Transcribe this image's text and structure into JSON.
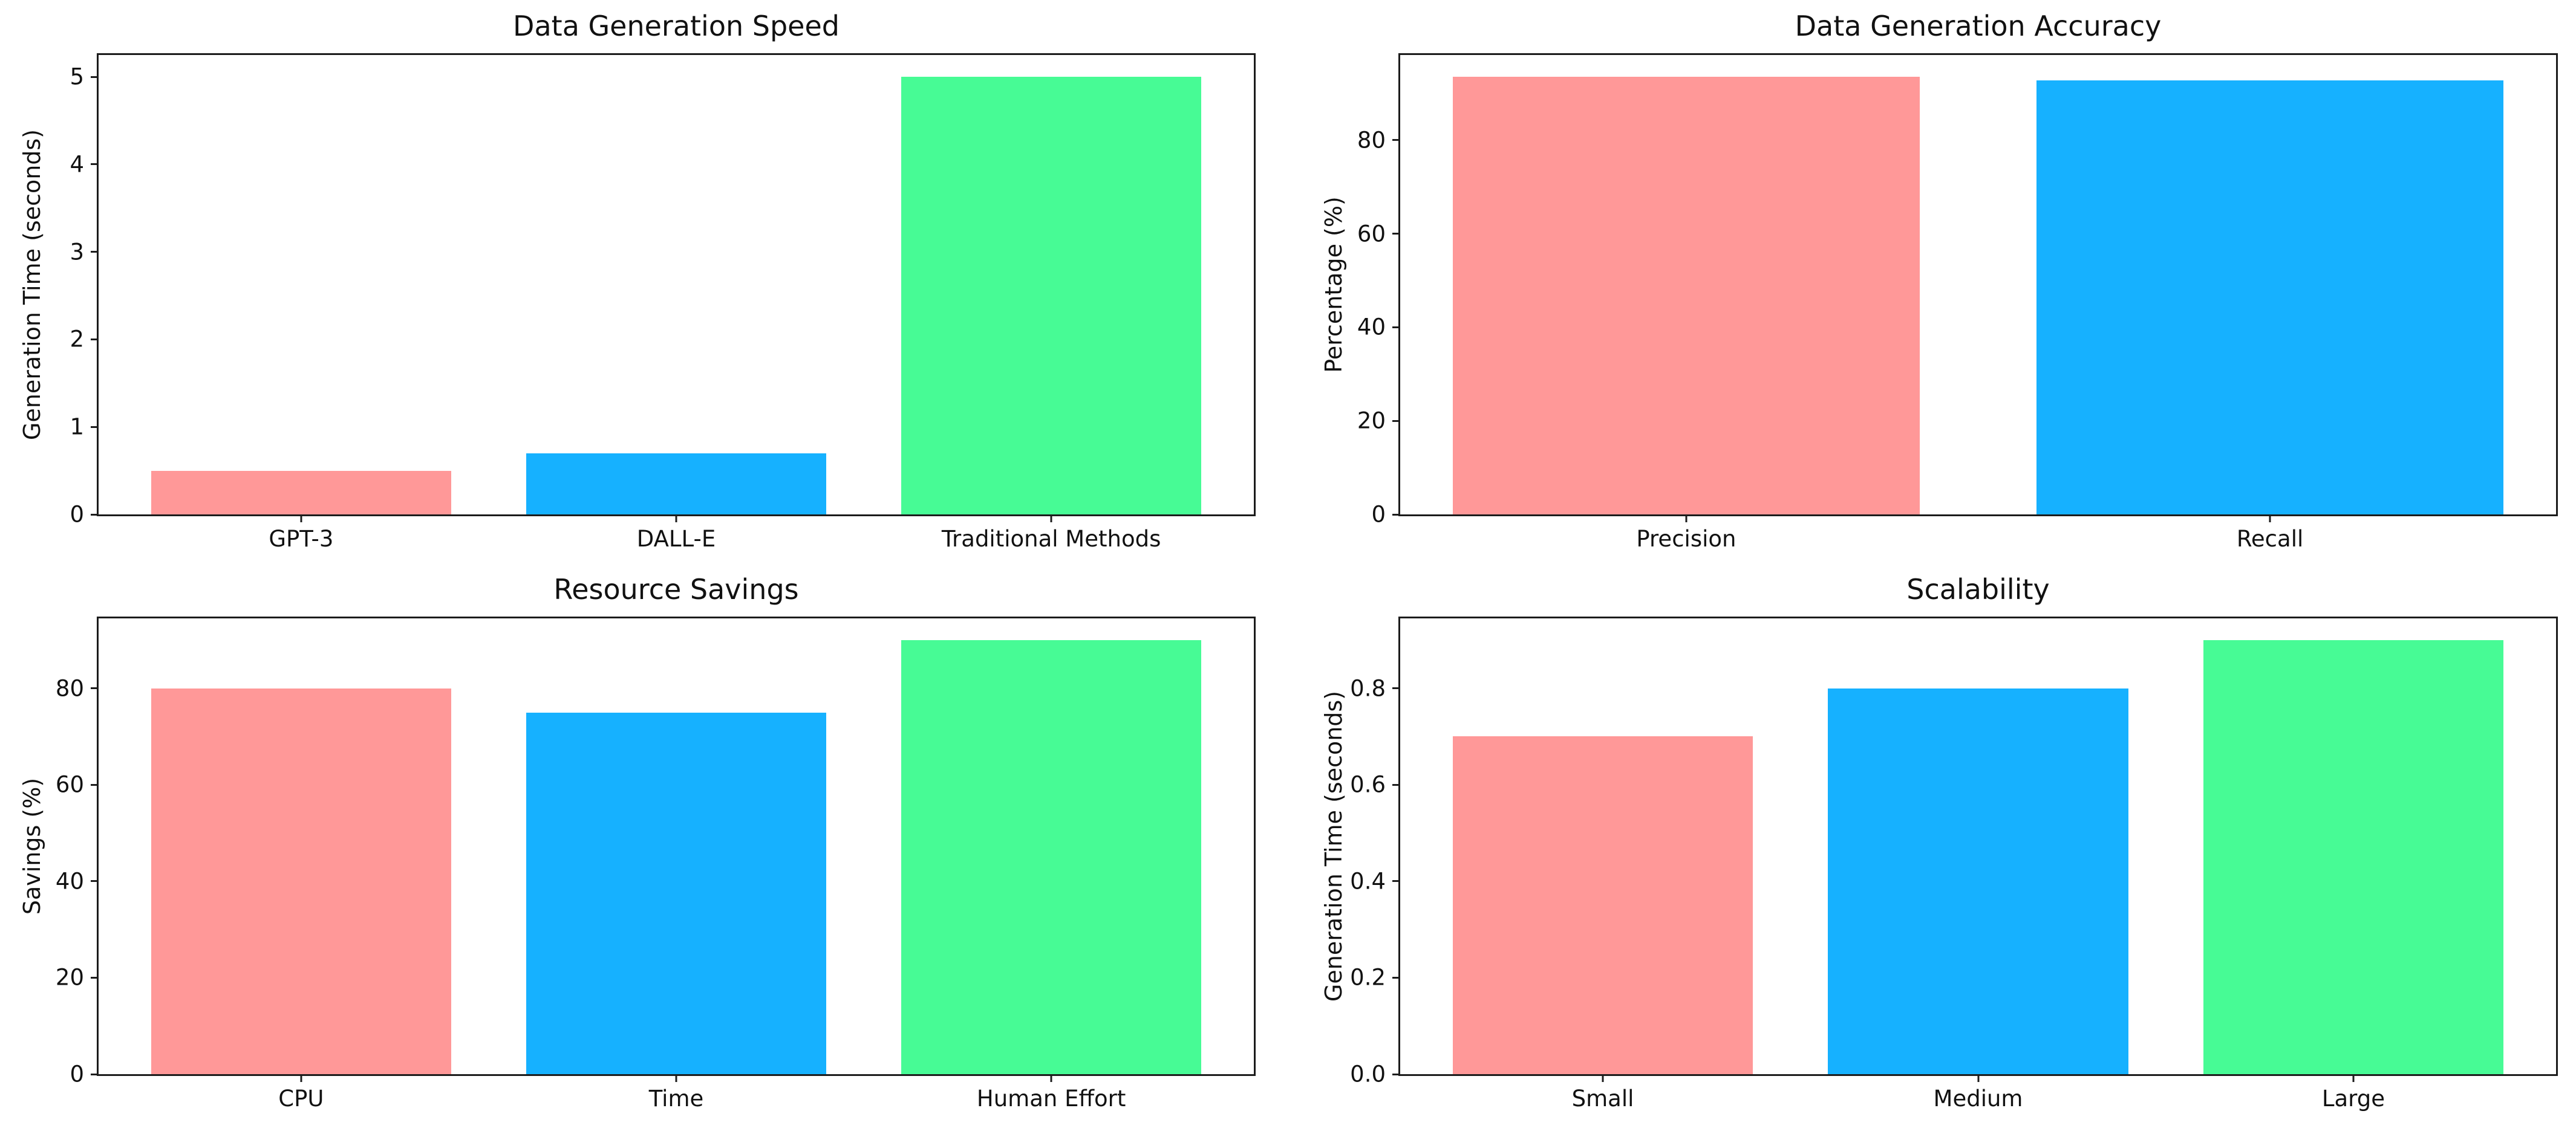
{
  "figure": {
    "background": "#ffffff",
    "axis_color": "#1c1c1c",
    "text_color": "#111111"
  },
  "chart_data": [
    {
      "type": "bar",
      "title": "Data Generation Speed",
      "xlabel": "",
      "ylabel": "Generation Time (seconds)",
      "categories": [
        "GPT-3",
        "DALL-E",
        "Traditional Methods"
      ],
      "values": [
        0.5,
        0.7,
        5.0
      ],
      "bar_colors": [
        "#FF9898",
        "#16B1FF",
        "#47FB95"
      ],
      "ylim": [
        0,
        5.25
      ],
      "yticks": [
        0,
        1,
        2,
        3,
        4,
        5
      ],
      "ytick_labels": [
        "0",
        "1",
        "2",
        "3",
        "4",
        "5"
      ],
      "grid": false,
      "legend": null
    },
    {
      "type": "bar",
      "title": "Data Generation Accuracy",
      "xlabel": "",
      "ylabel": "Percentage (%)",
      "categories": [
        "Precision",
        "Recall"
      ],
      "values": [
        93.5,
        92.8
      ],
      "bar_colors": [
        "#FF9898",
        "#16B1FF"
      ],
      "ylim": [
        0,
        98.175
      ],
      "yticks": [
        0,
        20,
        40,
        60,
        80
      ],
      "ytick_labels": [
        "0",
        "20",
        "40",
        "60",
        "80"
      ],
      "grid": false,
      "legend": null
    },
    {
      "type": "bar",
      "title": "Resource Savings",
      "xlabel": "",
      "ylabel": "Savings (%)",
      "categories": [
        "CPU",
        "Time",
        "Human Effort"
      ],
      "values": [
        80,
        75,
        90
      ],
      "bar_colors": [
        "#FF9898",
        "#16B1FF",
        "#47FB95"
      ],
      "ylim": [
        0,
        94.5
      ],
      "yticks": [
        0,
        20,
        40,
        60,
        80
      ],
      "ytick_labels": [
        "0",
        "20",
        "40",
        "60",
        "80"
      ],
      "grid": false,
      "legend": null
    },
    {
      "type": "bar",
      "title": "Scalability",
      "xlabel": "",
      "ylabel": "Generation Time (seconds)",
      "categories": [
        "Small",
        "Medium",
        "Large"
      ],
      "values": [
        0.7,
        0.8,
        0.9
      ],
      "bar_colors": [
        "#FF9898",
        "#16B1FF",
        "#47FB95"
      ],
      "ylim": [
        0,
        0.945
      ],
      "yticks": [
        0.0,
        0.2,
        0.4,
        0.6,
        0.8
      ],
      "ytick_labels": [
        "0.0",
        "0.2",
        "0.4",
        "0.6",
        "0.8"
      ],
      "grid": false,
      "legend": null
    }
  ]
}
